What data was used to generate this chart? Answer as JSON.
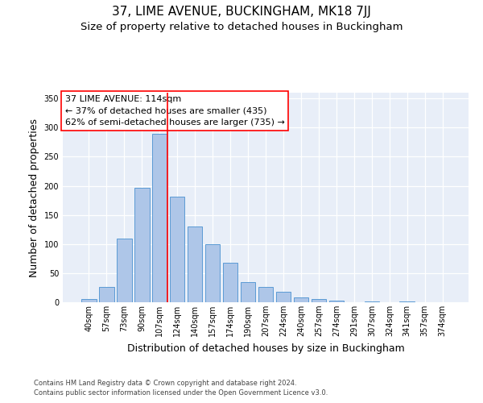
{
  "title1": "37, LIME AVENUE, BUCKINGHAM, MK18 7JJ",
  "title2": "Size of property relative to detached houses in Buckingham",
  "xlabel": "Distribution of detached houses by size in Buckingham",
  "ylabel": "Number of detached properties",
  "footnote1": "Contains HM Land Registry data © Crown copyright and database right 2024.",
  "footnote2": "Contains public sector information licensed under the Open Government Licence v3.0.",
  "bar_labels": [
    "40sqm",
    "57sqm",
    "73sqm",
    "90sqm",
    "107sqm",
    "124sqm",
    "140sqm",
    "157sqm",
    "174sqm",
    "190sqm",
    "207sqm",
    "224sqm",
    "240sqm",
    "257sqm",
    "274sqm",
    "291sqm",
    "307sqm",
    "324sqm",
    "341sqm",
    "357sqm",
    "374sqm"
  ],
  "bar_values": [
    6,
    26,
    110,
    197,
    290,
    181,
    130,
    100,
    68,
    35,
    26,
    18,
    8,
    5,
    3,
    0,
    2,
    0,
    2,
    0,
    0
  ],
  "bar_color": "#aec6e8",
  "bar_edge_color": "#5b9bd5",
  "annotation_line1": "37 LIME AVENUE: 114sqm",
  "annotation_line2": "← 37% of detached houses are smaller (435)",
  "annotation_line3": "62% of semi-detached houses are larger (735) →",
  "vline_color": "red",
  "vline_x": 4.45,
  "ylim": [
    0,
    360
  ],
  "yticks": [
    0,
    50,
    100,
    150,
    200,
    250,
    300,
    350
  ],
  "plot_bg_color": "#e8eef8",
  "grid_color": "#ffffff",
  "title1_fontsize": 11,
  "title2_fontsize": 9.5,
  "xlabel_fontsize": 9,
  "ylabel_fontsize": 9,
  "annotation_fontsize": 8,
  "tick_fontsize": 7,
  "footnote_fontsize": 6,
  "footnote_color": "#444444"
}
